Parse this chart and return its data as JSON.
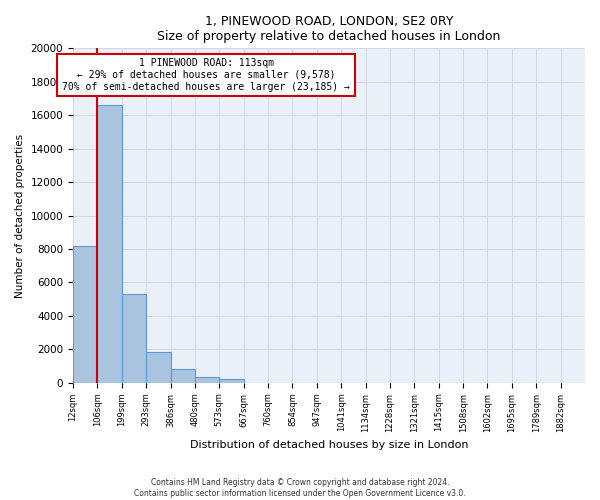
{
  "title": "1, PINEWOOD ROAD, LONDON, SE2 0RY",
  "subtitle": "Size of property relative to detached houses in London",
  "xlabel": "Distribution of detached houses by size in London",
  "ylabel": "Number of detached properties",
  "bin_labels": [
    "12sqm",
    "106sqm",
    "199sqm",
    "293sqm",
    "386sqm",
    "480sqm",
    "573sqm",
    "667sqm",
    "760sqm",
    "854sqm",
    "947sqm",
    "1041sqm",
    "1134sqm",
    "1228sqm",
    "1321sqm",
    "1415sqm",
    "1508sqm",
    "1602sqm",
    "1695sqm",
    "1789sqm",
    "1882sqm"
  ],
  "bar_heights": [
    8200,
    16600,
    5300,
    1850,
    800,
    350,
    200,
    0,
    0,
    0,
    0,
    0,
    0,
    0,
    0,
    0,
    0,
    0,
    0,
    0,
    0
  ],
  "bar_color": "#aac4e0",
  "bar_edge_color": "#5b9bd5",
  "property_line_x": 1,
  "property_line_label": "1 PINEWOOD ROAD: 113sqm",
  "annotation_line1": "← 29% of detached houses are smaller (9,578)",
  "annotation_line2": "70% of semi-detached houses are larger (23,185) →",
  "ylim": [
    0,
    20000
  ],
  "yticks": [
    0,
    2000,
    4000,
    6000,
    8000,
    10000,
    12000,
    14000,
    16000,
    18000,
    20000
  ],
  "grid_color": "#d0d8e8",
  "background_color": "#eaf0f8",
  "annotation_box_color": "#ffffff",
  "annotation_box_edge": "#cc0000",
  "red_line_color": "#cc0000",
  "footer_line1": "Contains HM Land Registry data © Crown copyright and database right 2024.",
  "footer_line2": "Contains public sector information licensed under the Open Government Licence v3.0."
}
